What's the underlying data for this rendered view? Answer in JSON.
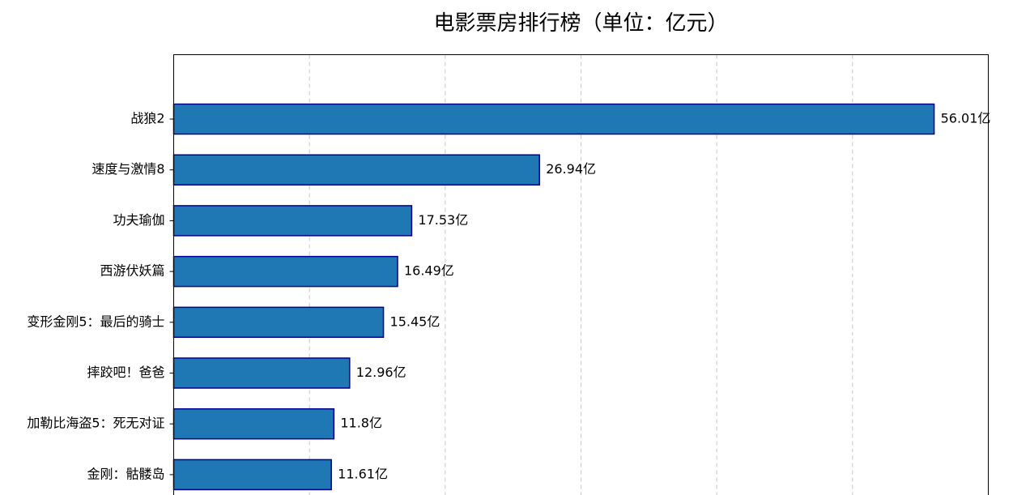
{
  "chart_data": {
    "type": "bar",
    "orientation": "horizontal",
    "title": "电影票房排行榜（单位：亿元）",
    "xlabel": "",
    "ylabel": "",
    "categories": [
      "战狼2",
      "速度与激情8",
      "功夫瑜伽",
      "西游伏妖篇",
      "变形金刚5：最后的骑士",
      "摔跤吧！爸爸",
      "加勒比海盗5：死无对证",
      "金刚：骷髅岛"
    ],
    "values": [
      56.01,
      26.94,
      17.53,
      16.49,
      15.45,
      12.96,
      11.8,
      11.61
    ],
    "data_labels": [
      "56.01亿",
      "26.94亿",
      "17.53亿",
      "16.49亿",
      "15.45亿",
      "12.96亿",
      "11.8亿",
      "11.61亿"
    ],
    "xlim": [
      0,
      60
    ],
    "grid": "x-dashed",
    "bar_color": "#1f77b4",
    "bar_edge_color": "#00008b"
  }
}
